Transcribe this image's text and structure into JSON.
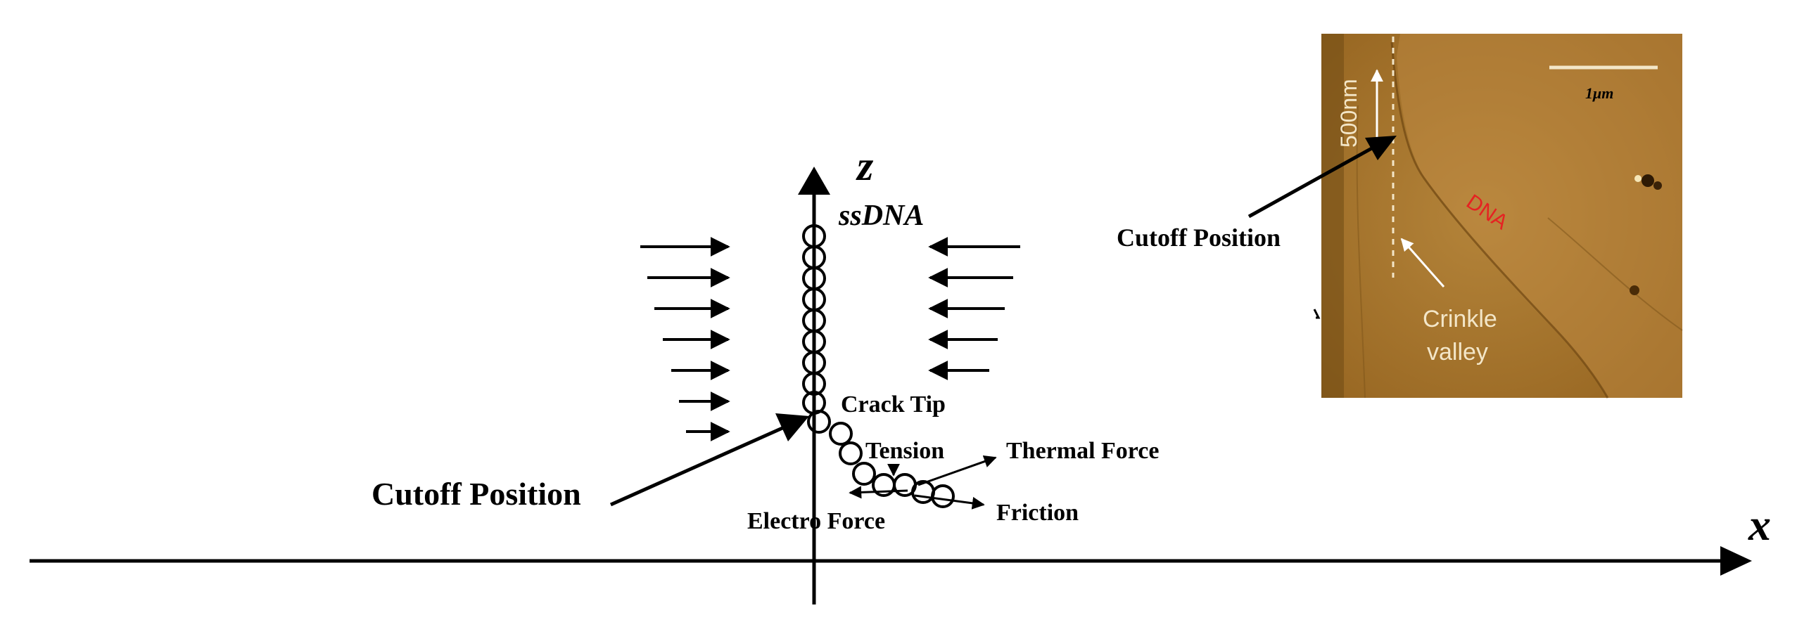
{
  "axes": {
    "x_label": "x",
    "z_label": "z"
  },
  "labels": {
    "molecule": "ssDNA",
    "crack_tip": "Crack Tip",
    "tension": "Tension",
    "thermal_force": "Thermal Force",
    "friction": "Friction",
    "electro_force": "Electro Force",
    "cutoff_main": "Cutoff Position",
    "cutoff_inset": "Cutoff Position"
  },
  "inset": {
    "scale_bar": "1μm",
    "length_label": "500nm",
    "dna_label": "DNA",
    "crinkle_line1": "Crinkle",
    "crinkle_line2": "valley",
    "colors": {
      "background": "#a4722a",
      "dna_text": "#e52222"
    }
  }
}
